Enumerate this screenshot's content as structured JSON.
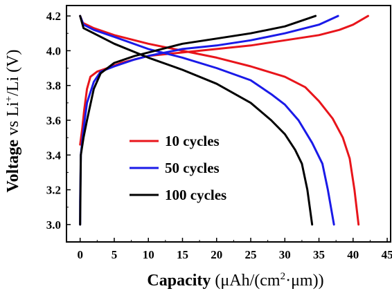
{
  "chart_data": {
    "type": "line",
    "xlabel": {
      "main": "Capacity",
      "unit_open": " (μAh/(cm",
      "unit_sup": "2",
      "unit_dot": "·",
      "unit_close": "μm))"
    },
    "ylabel": {
      "main": "Voltage",
      "mid": " vs Li",
      "sup": "+",
      "tail": "/Li (V)"
    },
    "xlim": [
      -2,
      45.5
    ],
    "ylim": [
      2.9,
      4.26
    ],
    "xticks": [
      0,
      5,
      10,
      15,
      20,
      25,
      30,
      35,
      40,
      45
    ],
    "yticks": [
      3.0,
      3.2,
      3.4,
      3.6,
      3.8,
      4.0,
      4.2
    ],
    "legend_placement": "center-left",
    "grid": false,
    "series": [
      {
        "name": "10 cycles",
        "color": "#e8151b",
        "charge": [
          [
            0,
            3.46
          ],
          [
            0.3,
            3.55
          ],
          [
            0.6,
            3.66
          ],
          [
            1.0,
            3.78
          ],
          [
            1.5,
            3.85
          ],
          [
            2.5,
            3.88
          ],
          [
            4,
            3.9
          ],
          [
            6,
            3.93
          ],
          [
            8,
            3.95
          ],
          [
            10,
            3.97
          ],
          [
            15,
            3.99
          ],
          [
            20,
            4.01
          ],
          [
            25,
            4.03
          ],
          [
            30,
            4.06
          ],
          [
            35,
            4.09
          ],
          [
            38,
            4.12
          ],
          [
            40,
            4.15
          ],
          [
            42.2,
            4.2
          ]
        ],
        "discharge": [
          [
            0,
            4.2
          ],
          [
            0.4,
            4.16
          ],
          [
            2,
            4.13
          ],
          [
            5,
            4.09
          ],
          [
            10,
            4.04
          ],
          [
            15,
            4.0
          ],
          [
            20,
            3.96
          ],
          [
            25,
            3.91
          ],
          [
            30,
            3.85
          ],
          [
            33,
            3.79
          ],
          [
            35,
            3.71
          ],
          [
            37,
            3.61
          ],
          [
            38.5,
            3.5
          ],
          [
            39.5,
            3.38
          ],
          [
            40.2,
            3.2
          ],
          [
            40.8,
            3.0
          ]
        ]
      },
      {
        "name": "50 cycles",
        "color": "#1a1ae8",
        "charge": [
          [
            0,
            3.0
          ],
          [
            0,
            3.13
          ],
          [
            0.1,
            3.4
          ],
          [
            0.5,
            3.55
          ],
          [
            1,
            3.7
          ],
          [
            2,
            3.82
          ],
          [
            3,
            3.88
          ],
          [
            5,
            3.91
          ],
          [
            8,
            3.95
          ],
          [
            10,
            3.97
          ],
          [
            15,
            4.01
          ],
          [
            20,
            4.03
          ],
          [
            25,
            4.06
          ],
          [
            30,
            4.1
          ],
          [
            35,
            4.15
          ],
          [
            37.8,
            4.2
          ]
        ],
        "discharge": [
          [
            0,
            4.2
          ],
          [
            0.5,
            4.15
          ],
          [
            2,
            4.12
          ],
          [
            5,
            4.08
          ],
          [
            10,
            4.01
          ],
          [
            15,
            3.96
          ],
          [
            20,
            3.9
          ],
          [
            25,
            3.83
          ],
          [
            28,
            3.75
          ],
          [
            30,
            3.69
          ],
          [
            32,
            3.6
          ],
          [
            34,
            3.47
          ],
          [
            35.5,
            3.35
          ],
          [
            36.3,
            3.2
          ],
          [
            37.2,
            3.0
          ]
        ]
      },
      {
        "name": "100 cycles",
        "color": "#000000",
        "charge": [
          [
            0,
            3.0
          ],
          [
            0.1,
            3.4
          ],
          [
            0.5,
            3.5
          ],
          [
            1,
            3.6
          ],
          [
            2,
            3.78
          ],
          [
            3,
            3.87
          ],
          [
            5,
            3.93
          ],
          [
            8,
            3.97
          ],
          [
            10,
            3.99
          ],
          [
            15,
            4.04
          ],
          [
            20,
            4.07
          ],
          [
            25,
            4.1
          ],
          [
            30,
            4.14
          ],
          [
            34.5,
            4.2
          ]
        ],
        "discharge": [
          [
            0,
            4.2
          ],
          [
            0.5,
            4.13
          ],
          [
            2,
            4.1
          ],
          [
            5,
            4.04
          ],
          [
            10,
            3.96
          ],
          [
            15,
            3.89
          ],
          [
            20,
            3.81
          ],
          [
            25,
            3.7
          ],
          [
            28,
            3.6
          ],
          [
            30,
            3.52
          ],
          [
            31.5,
            3.43
          ],
          [
            32.5,
            3.35
          ],
          [
            33.3,
            3.2
          ],
          [
            34,
            3.0
          ]
        ]
      }
    ]
  }
}
